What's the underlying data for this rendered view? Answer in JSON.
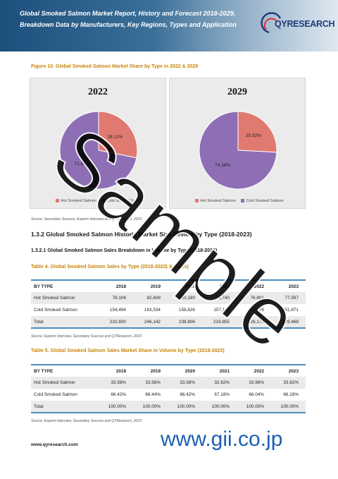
{
  "header": {
    "title": "Global Smoked Salmon Market Report, History and Forecast 2018-2029, Breakdown Data by Manufacturers, Key Regions, Types and Application",
    "logo_text": "QYRESEARCH"
  },
  "figure": {
    "caption": "Figure 10.   Global Smoked Salmon Market Share by Type in 2022 & 2029",
    "source": "Source: Secondary Sources, Experts Interview and QYResearch, 2023"
  },
  "chart_data": [
    {
      "type": "pie",
      "title": "2022",
      "labels": [
        "Hot Smoked Salmon",
        "Cold Smoked Salmon"
      ],
      "values": [
        28.12,
        71.88
      ],
      "value_labels": [
        "28.12%",
        "71.88%"
      ],
      "colors": [
        "#e07a70",
        "#8e6fb5"
      ],
      "legend": "bottom"
    },
    {
      "type": "pie",
      "title": "2029",
      "labels": [
        "Hot Smoked Salmon",
        "Cold Smoked Salmon"
      ],
      "values": [
        25.82,
        74.18
      ],
      "value_labels": [
        "25.82%",
        "74.18%"
      ],
      "colors": [
        "#e07a70",
        "#8e6fb5"
      ],
      "legend": "bottom"
    }
  ],
  "section": {
    "h132": "1.3.2  Global Smoked Salmon Historic Market Size Review by Type (2018-2023)",
    "h1321": "1.3.2.1  Global Smoked Salmon Sales Breakdown in Volume by Type (2018-2023)"
  },
  "table4": {
    "caption": "Table 4.   Global Smoked Salmon Sales by Type (2018-2023) & (Tons)",
    "header": [
      "BY TYPE",
      "2018",
      "2019",
      "2020",
      "2021",
      "2022",
      "2023"
    ],
    "rows": [
      [
        "Hot Smoked Salmon",
        "78,106",
        "82,608",
        "80,180",
        "76,740",
        "76,801",
        "77,597"
      ],
      [
        "Cold Smoked Salmon",
        "154,494",
        "163,534",
        "158,626",
        "157,115",
        "149,378",
        "151,871"
      ],
      [
        "Total",
        "232,600",
        "246,142",
        "238,806",
        "233,855",
        "226,179",
        "229,468"
      ]
    ],
    "source": "Source: Experts Interview, Secondary Sources and QYResearch, 2023"
  },
  "table5": {
    "caption": "Table 5.   Global Smoked Salmon Sales Market Share in Volume by Type (2018-2023)",
    "header": [
      "BY TYPE",
      "2018",
      "2019",
      "2020",
      "2021",
      "2022",
      "2023"
    ],
    "rows": [
      [
        "Hot Smoked Salmon",
        "33.58%",
        "33.56%",
        "33.58%",
        "32.82%",
        "33.96%",
        "33.82%"
      ],
      [
        "Cold Smoked Salmon",
        "66.42%",
        "66.44%",
        "66.42%",
        "67.18%",
        "66.04%",
        "66.18%"
      ],
      [
        "Total",
        "100.00%",
        "100.00%",
        "100.00%",
        "100.00%",
        "100.00%",
        "100.00%"
      ]
    ],
    "source": "Source: Experts Interview, Secondary Sources and QYResearch, 2023"
  },
  "footer": {
    "url": "www.qyresearch.com"
  },
  "watermark": {
    "text": "Sample",
    "url": "www.gii.co.jp"
  }
}
